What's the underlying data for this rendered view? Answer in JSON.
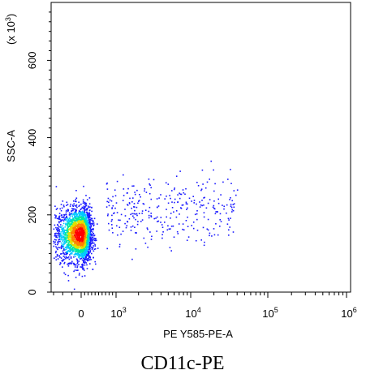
{
  "chart_data": {
    "type": "scatter",
    "title": "",
    "caption": "CD11c-PE",
    "xlabel": "PE Y585-PE-A",
    "ylabel": "SSC-A",
    "y_multiplier": "(x 10",
    "y_multiplier_exp": "3",
    "y_multiplier_close": ")",
    "x_scale": "biexponential",
    "y_scale": "linear",
    "xlim": [
      -300,
      1000000
    ],
    "ylim": [
      0,
      750
    ],
    "x_ticks": [
      {
        "value": 0,
        "base": "0",
        "exp": ""
      },
      {
        "value": 1000,
        "base": "10",
        "exp": "3"
      },
      {
        "value": 10000,
        "base": "10",
        "exp": "4"
      },
      {
        "value": 100000,
        "base": "10",
        "exp": "5"
      },
      {
        "value": 1000000,
        "base": "10",
        "exp": "6"
      }
    ],
    "y_ticks": [
      {
        "value": 0,
        "label": "0"
      },
      {
        "value": 200,
        "label": "200"
      },
      {
        "value": 400,
        "label": "400"
      },
      {
        "value": 600,
        "label": "600"
      }
    ],
    "legend": "none",
    "grid": false,
    "colormap": [
      "#1a1aff",
      "#00c8ff",
      "#00e8a0",
      "#e0e000",
      "#ff8000",
      "#ff0000"
    ],
    "populations": [
      {
        "name": "main",
        "x_center": 0,
        "x_spread": 140,
        "y_center": 150,
        "y_spread": 35,
        "count": 2600
      },
      {
        "name": "tail",
        "x_range": [
          700,
          40000
        ],
        "y_center": 215,
        "y_spread": 45,
        "count": 320
      }
    ]
  }
}
